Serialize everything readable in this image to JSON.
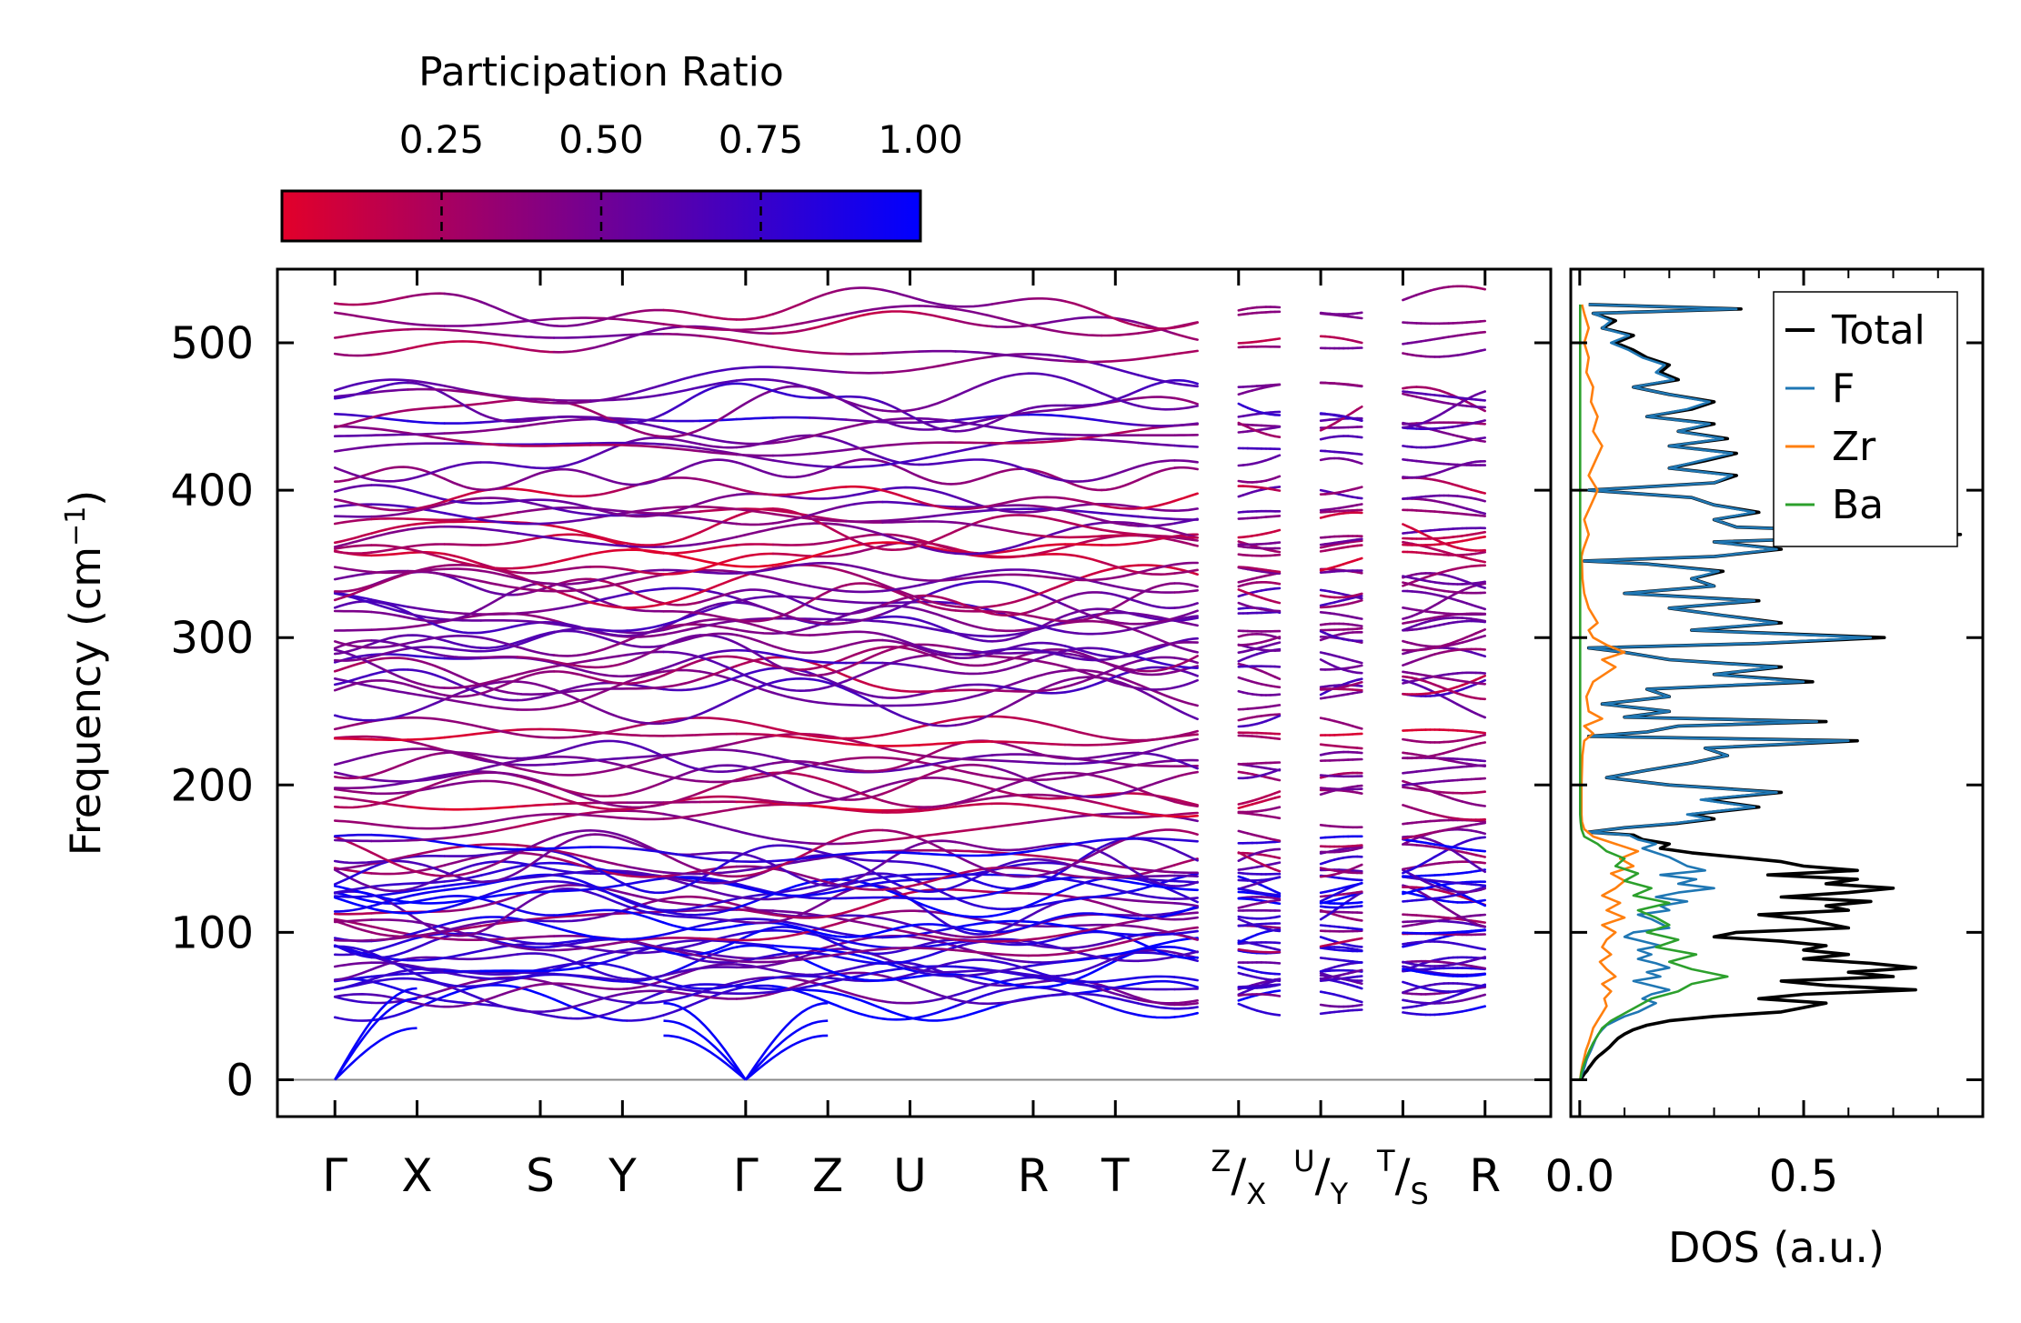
{
  "chart_data": [
    {
      "type": "line",
      "subtype": "phonon-band-structure",
      "ylabel": "Frequency (cm",
      "ylabel_sup": "−1",
      "ylabel_close": ")",
      "ylim": [
        -25,
        550
      ],
      "yticks": [
        0,
        100,
        200,
        300,
        400,
        500
      ],
      "ytick_labels": [
        "0",
        "100",
        "200",
        "300",
        "400",
        "500"
      ],
      "xlim": [
        -0.7,
        14.8
      ],
      "xticks": [
        0,
        1,
        2.5,
        3.5,
        5,
        6,
        7,
        8.5,
        9.5,
        11,
        12,
        13,
        14
      ],
      "xtick_labels": [
        {
          "main": "Γ"
        },
        {
          "main": "X"
        },
        {
          "main": "S"
        },
        {
          "main": "Y"
        },
        {
          "main": "Γ"
        },
        {
          "main": "Z"
        },
        {
          "main": "U"
        },
        {
          "main": "R"
        },
        {
          "main": "T"
        },
        {
          "sup": "Z",
          "slash": "/",
          "sub": "X"
        },
        {
          "sup": "U",
          "slash": "/",
          "sub": "Y"
        },
        {
          "sup": "T",
          "slash": "/",
          "sub": "S"
        },
        {
          "main": "R"
        }
      ],
      "path_segments": [
        [
          0,
          10.5
        ],
        [
          11,
          11.5
        ],
        [
          12,
          12.5
        ],
        [
          13,
          14
        ]
      ],
      "acoustic_gamma_points": [
        0,
        5
      ],
      "acoustic_edge_endpoints": [
        [
          1,
          [
            35,
            55,
            62
          ]
        ],
        [
          6,
          [
            30,
            40,
            52
          ]
        ]
      ],
      "branch_groups": [
        {
          "range": [
            50,
            160
          ],
          "count": 34,
          "participation": [
            0.3,
            1.0
          ]
        },
        {
          "range": [
            170,
            240
          ],
          "count": 12,
          "participation": [
            0.1,
            0.5
          ]
        },
        {
          "range": [
            255,
            345
          ],
          "count": 20,
          "participation": [
            0.2,
            0.7
          ]
        },
        {
          "range": [
            350,
            400
          ],
          "count": 10,
          "participation": [
            0.1,
            0.6
          ]
        },
        {
          "range": [
            410,
            475
          ],
          "count": 10,
          "participation": [
            0.3,
            0.7
          ]
        },
        {
          "range": [
            495,
            525
          ],
          "count": 4,
          "participation": [
            0.2,
            0.5
          ]
        }
      ],
      "zero_line": 0,
      "zero_line_color": "#888888",
      "colorbar": {
        "label": "Participation Ratio",
        "ticks": [
          0.25,
          0.5,
          0.75,
          1.0
        ],
        "tick_labels": [
          "0.25",
          "0.50",
          "0.75",
          "1.00"
        ],
        "range": [
          0,
          1
        ],
        "color_low": "#e2002a",
        "color_high": "#0000ff"
      }
    },
    {
      "type": "line",
      "subtype": "density-of-states",
      "xlabel": "DOS (a.u.)",
      "xlim": [
        -0.02,
        0.9
      ],
      "xticks": [
        0,
        0.5
      ],
      "xtick_labels": [
        "0.0",
        "0.5"
      ],
      "ylim": [
        -25,
        550
      ],
      "legend_position": "upper-right",
      "series": [
        {
          "name": "Total",
          "color": "#000000",
          "f": [
            0,
            1,
            2,
            3,
            4,
            5,
            6,
            8,
            10,
            12,
            14,
            16,
            18,
            20,
            22,
            25,
            28,
            31,
            34,
            37,
            40,
            43,
            46,
            49,
            52,
            55,
            58,
            61,
            64,
            67,
            70,
            73,
            76,
            79,
            82,
            85,
            88,
            91,
            94,
            97,
            100,
            103,
            106,
            109,
            112,
            115,
            118,
            121,
            124,
            127,
            130,
            133,
            136,
            139,
            142,
            145,
            148,
            151,
            154,
            157,
            160,
            163,
            166,
            168,
            171,
            174,
            177,
            180,
            185,
            190,
            195,
            200,
            205,
            210,
            215,
            220,
            225,
            230,
            233,
            236,
            240,
            243,
            246,
            250,
            255,
            260,
            265,
            270,
            275,
            280,
            285,
            290,
            293,
            296,
            300,
            305,
            310,
            315,
            320,
            325,
            330,
            335,
            340,
            345,
            350,
            352,
            355,
            360,
            365,
            370,
            375,
            380,
            385,
            390,
            395,
            400,
            405,
            410,
            415,
            420,
            425,
            430,
            435,
            440,
            445,
            450,
            455,
            460,
            465,
            470,
            475,
            480,
            485,
            490,
            495,
            500,
            505,
            510,
            515,
            520,
            523,
            526
          ],
          "v": [
            0.002,
            0.004,
            0.006,
            0.008,
            0.01,
            0.013,
            0.016,
            0.02,
            0.025,
            0.03,
            0.035,
            0.042,
            0.05,
            0.058,
            0.066,
            0.075,
            0.085,
            0.1,
            0.12,
            0.15,
            0.2,
            0.3,
            0.45,
            0.5,
            0.55,
            0.4,
            0.5,
            0.75,
            0.55,
            0.45,
            0.7,
            0.6,
            0.75,
            0.65,
            0.5,
            0.6,
            0.5,
            0.55,
            0.45,
            0.3,
            0.35,
            0.6,
            0.55,
            0.5,
            0.4,
            0.6,
            0.55,
            0.65,
            0.45,
            0.6,
            0.7,
            0.55,
            0.62,
            0.42,
            0.62,
            0.5,
            0.45,
            0.35,
            0.25,
            0.18,
            0.2,
            0.14,
            0.12,
            0.02,
            0.1,
            0.22,
            0.3,
            0.25,
            0.4,
            0.28,
            0.45,
            0.2,
            0.06,
            0.15,
            0.25,
            0.33,
            0.28,
            0.62,
            0.02,
            0.15,
            0.22,
            0.55,
            0.1,
            0.2,
            0.05,
            0.2,
            0.15,
            0.52,
            0.3,
            0.45,
            0.2,
            0.1,
            0.02,
            0.4,
            0.68,
            0.25,
            0.45,
            0.32,
            0.2,
            0.4,
            0.1,
            0.3,
            0.25,
            0.32,
            0.15,
            0.01,
            0.3,
            0.45,
            0.3,
            0.85,
            0.35,
            0.3,
            0.4,
            0.3,
            0.25,
            0.02,
            0.3,
            0.35,
            0.2,
            0.28,
            0.35,
            0.2,
            0.33,
            0.22,
            0.3,
            0.15,
            0.25,
            0.3,
            0.2,
            0.12,
            0.22,
            0.18,
            0.2,
            0.15,
            0.12,
            0.08,
            0.12,
            0.05,
            0.08,
            0.03,
            0.36,
            0.02
          ]
        },
        {
          "name": "F",
          "color": "#1f77b4",
          "f": [
            0,
            1,
            2,
            3,
            4,
            5,
            6,
            8,
            10,
            12,
            14,
            16,
            18,
            20,
            22,
            25,
            28,
            31,
            34,
            37,
            40,
            43,
            46,
            49,
            52,
            55,
            58,
            61,
            64,
            67,
            70,
            73,
            76,
            79,
            82,
            85,
            88,
            91,
            94,
            97,
            100,
            103,
            106,
            109,
            112,
            115,
            118,
            121,
            124,
            127,
            130,
            133,
            136,
            139,
            142,
            145,
            148,
            151,
            154,
            157,
            160,
            163,
            166,
            168,
            171,
            174,
            177,
            180,
            185,
            190,
            195,
            200,
            205,
            210,
            215,
            220,
            225,
            230,
            233,
            236,
            240,
            243,
            246,
            250,
            255,
            260,
            265,
            270,
            275,
            280,
            285,
            290,
            293,
            296,
            300,
            305,
            310,
            315,
            320,
            325,
            330,
            335,
            340,
            345,
            350,
            352,
            355,
            360,
            365,
            370,
            375,
            380,
            385,
            390,
            395,
            400,
            405,
            410,
            415,
            420,
            425,
            430,
            435,
            440,
            445,
            450,
            455,
            460,
            465,
            470,
            475,
            480,
            485,
            490,
            495,
            500,
            505,
            510,
            515,
            520,
            523,
            526
          ],
          "v": [
            0.001,
            0.002,
            0.003,
            0.004,
            0.005,
            0.006,
            0.008,
            0.01,
            0.012,
            0.014,
            0.016,
            0.019,
            0.022,
            0.025,
            0.028,
            0.032,
            0.036,
            0.042,
            0.05,
            0.06,
            0.08,
            0.1,
            0.13,
            0.15,
            0.17,
            0.14,
            0.16,
            0.2,
            0.16,
            0.12,
            0.18,
            0.15,
            0.2,
            0.17,
            0.13,
            0.16,
            0.13,
            0.18,
            0.14,
            0.1,
            0.12,
            0.2,
            0.18,
            0.16,
            0.13,
            0.2,
            0.18,
            0.24,
            0.17,
            0.22,
            0.3,
            0.22,
            0.26,
            0.18,
            0.28,
            0.24,
            0.22,
            0.2,
            0.17,
            0.14,
            0.17,
            0.13,
            0.11,
            0.02,
            0.1,
            0.21,
            0.29,
            0.24,
            0.39,
            0.27,
            0.44,
            0.2,
            0.06,
            0.15,
            0.25,
            0.33,
            0.28,
            0.6,
            0.02,
            0.15,
            0.22,
            0.53,
            0.1,
            0.2,
            0.05,
            0.2,
            0.15,
            0.5,
            0.3,
            0.44,
            0.2,
            0.1,
            0.02,
            0.39,
            0.65,
            0.25,
            0.44,
            0.32,
            0.2,
            0.39,
            0.1,
            0.3,
            0.25,
            0.31,
            0.15,
            0.01,
            0.3,
            0.44,
            0.3,
            0.83,
            0.35,
            0.3,
            0.39,
            0.3,
            0.25,
            0.02,
            0.3,
            0.34,
            0.2,
            0.27,
            0.34,
            0.2,
            0.32,
            0.22,
            0.29,
            0.15,
            0.24,
            0.29,
            0.2,
            0.12,
            0.21,
            0.17,
            0.19,
            0.14,
            0.11,
            0.07,
            0.11,
            0.05,
            0.07,
            0.03,
            0.35,
            0.02
          ]
        },
        {
          "name": "Zr",
          "color": "#ff7f0e",
          "f": [
            0,
            5,
            10,
            15,
            20,
            25,
            30,
            35,
            40,
            45,
            50,
            55,
            60,
            65,
            70,
            75,
            80,
            85,
            90,
            95,
            100,
            105,
            110,
            115,
            120,
            125,
            130,
            135,
            140,
            145,
            150,
            155,
            160,
            165,
            170,
            175,
            180,
            190,
            200,
            210,
            220,
            230,
            235,
            240,
            245,
            250,
            260,
            270,
            280,
            285,
            290,
            295,
            300,
            305,
            310,
            320,
            330,
            340,
            350,
            355,
            360,
            370,
            380,
            390,
            400,
            410,
            420,
            430,
            440,
            450,
            460,
            470,
            480,
            490,
            500,
            510,
            520,
            526
          ],
          "v": [
            0.001,
            0.003,
            0.006,
            0.01,
            0.014,
            0.02,
            0.025,
            0.03,
            0.04,
            0.05,
            0.06,
            0.055,
            0.07,
            0.05,
            0.08,
            0.06,
            0.045,
            0.07,
            0.05,
            0.06,
            0.08,
            0.05,
            0.1,
            0.06,
            0.09,
            0.05,
            0.08,
            0.1,
            0.07,
            0.12,
            0.09,
            0.13,
            0.08,
            0.03,
            0.01,
            0.005,
            0.004,
            0.004,
            0.004,
            0.005,
            0.006,
            0.01,
            0.03,
            0.01,
            0.05,
            0.02,
            0.015,
            0.03,
            0.08,
            0.05,
            0.1,
            0.06,
            0.03,
            0.02,
            0.04,
            0.02,
            0.01,
            0.006,
            0.005,
            0.004,
            0.008,
            0.02,
            0.01,
            0.025,
            0.04,
            0.02,
            0.035,
            0.05,
            0.03,
            0.04,
            0.025,
            0.03,
            0.015,
            0.02,
            0.01,
            0.02,
            0.01,
            0.005
          ]
        },
        {
          "name": "Ba",
          "color": "#2ca02c",
          "f": [
            0,
            5,
            10,
            15,
            20,
            25,
            30,
            35,
            40,
            45,
            50,
            55,
            60,
            65,
            70,
            75,
            80,
            85,
            90,
            95,
            100,
            105,
            110,
            115,
            120,
            125,
            130,
            135,
            140,
            145,
            150,
            155,
            160,
            165,
            170,
            175,
            180,
            200,
            250,
            300,
            350,
            400,
            450,
            500,
            526
          ],
          "v": [
            0.001,
            0.004,
            0.009,
            0.015,
            0.022,
            0.03,
            0.04,
            0.05,
            0.07,
            0.1,
            0.13,
            0.16,
            0.22,
            0.25,
            0.33,
            0.25,
            0.2,
            0.26,
            0.17,
            0.22,
            0.15,
            0.2,
            0.17,
            0.13,
            0.2,
            0.12,
            0.16,
            0.1,
            0.13,
            0.08,
            0.1,
            0.06,
            0.04,
            0.01,
            0.004,
            0.002,
            0.001,
            0.001,
            0.001,
            0.001,
            0.001,
            0.001,
            0.001,
            0.001,
            0.001
          ]
        }
      ]
    }
  ]
}
